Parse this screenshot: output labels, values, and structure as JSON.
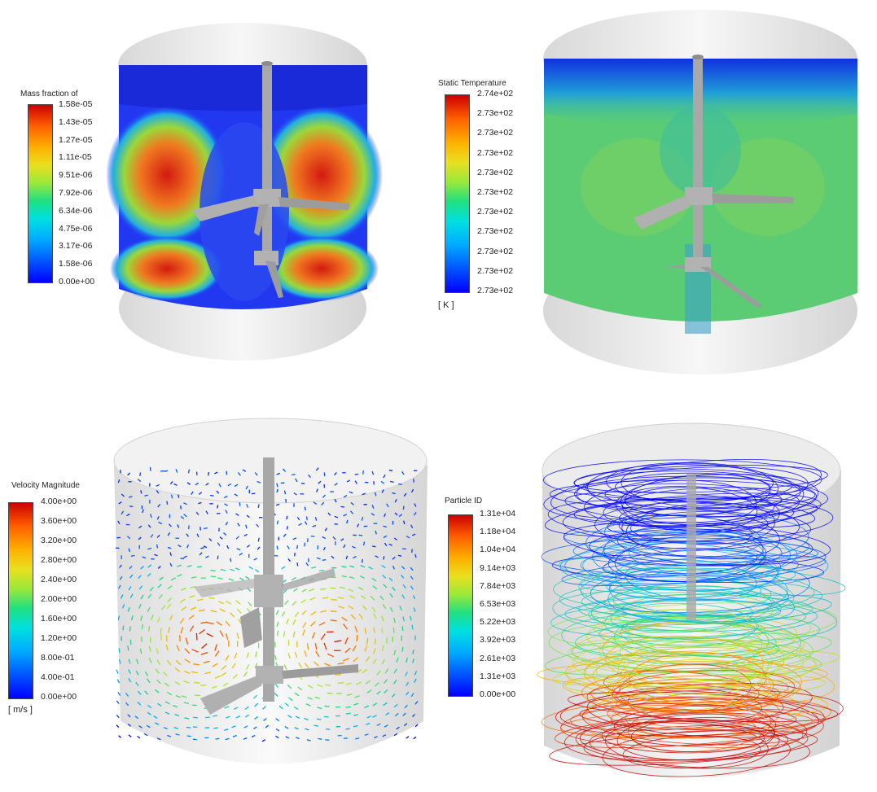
{
  "panels": {
    "mass_fraction": {
      "legend_title": "Mass fraction of",
      "ticks": [
        "1.58e-05",
        "1.43e-05",
        "1.27e-05",
        "1.11e-05",
        "9.51e-06",
        "7.92e-06",
        "6.34e-06",
        "4.75e-06",
        "3.17e-06",
        "1.58e-06",
        "0.00e+00"
      ],
      "unit": ""
    },
    "static_temperature": {
      "legend_title": "Static Temperature",
      "ticks": [
        "2.74e+02",
        "2.73e+02",
        "2.73e+02",
        "2.73e+02",
        "2.73e+02",
        "2.73e+02",
        "2.73e+02",
        "2.73e+02",
        "2.73e+02",
        "2.73e+02",
        "2.73e+02"
      ],
      "unit": "[ K ]"
    },
    "velocity_magnitude": {
      "legend_title": "Velocity Magnitude",
      "ticks": [
        "4.00e+00",
        "3.60e+00",
        "3.20e+00",
        "2.80e+00",
        "2.40e+00",
        "2.00e+00",
        "1.60e+00",
        "1.20e+00",
        "8.00e-01",
        "4.00e-01",
        "0.00e+00"
      ],
      "unit": "[ m/s ]"
    },
    "particle_id": {
      "legend_title": "Particle ID",
      "ticks": [
        "1.31e+04",
        "1.18e+04",
        "1.04e+04",
        "9.14e+03",
        "7.84e+03",
        "6.53e+03",
        "5.22e+03",
        "3.92e+03",
        "2.61e+03",
        "1.31e+03",
        "0.00e+00"
      ],
      "unit": ""
    }
  },
  "colors": {
    "colormap_min": "#0000ff",
    "colormap_max": "#cc0000",
    "tank_shell": "#e9e9e9",
    "impeller": "#a8a8a8"
  }
}
